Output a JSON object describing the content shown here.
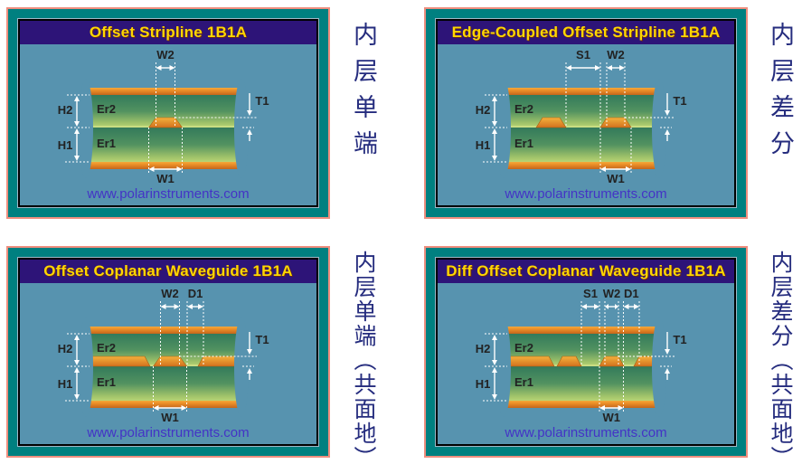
{
  "panels": [
    {
      "title": "Offset Stripline 1B1A",
      "website": "www.polarinstruments.com",
      "side_note": "内层单端",
      "dims": {
        "w2": "W2",
        "t1": "T1",
        "h2": "H2",
        "h1": "H1",
        "er2": "Er2",
        "er1": "Er1",
        "w1": "W1"
      }
    },
    {
      "title": "Edge-Coupled Offset Stripline 1B1A",
      "website": "www.polarinstruments.com",
      "side_note": "内层差分",
      "dims": {
        "s1": "S1",
        "w2": "W2",
        "t1": "T1",
        "h2": "H2",
        "h1": "H1",
        "er2": "Er2",
        "er1": "Er1",
        "w1": "W1"
      }
    },
    {
      "title": "Offset Coplanar Waveguide 1B1A",
      "website": "www.polarinstruments.com",
      "side_note": "内层单端（共面地）",
      "dims": {
        "w2": "W2",
        "d1": "D1",
        "t1": "T1",
        "h2": "H2",
        "h1": "H1",
        "er2": "Er2",
        "er1": "Er1",
        "w1": "W1"
      }
    },
    {
      "title": "Diff Offset Coplanar Waveguide 1B1A",
      "website": "www.polarinstruments.com",
      "side_note": "内层差分（共面地）",
      "dims": {
        "s1": "S1",
        "w2": "W2",
        "d1": "D1",
        "t1": "T1",
        "h2": "H2",
        "h1": "H1",
        "er2": "Er2",
        "er1": "Er1",
        "w1": "W1"
      }
    }
  ],
  "colors": {
    "border_salmon": "#EF8E7E",
    "border_teal": "#008080",
    "inner_light_line": "#9FB8C8",
    "title_bg": "#2D1478",
    "title_text": "#FFD700",
    "body_bg": "#5793AF",
    "website_text": "#4433C6",
    "side_note_text": "#252C7E",
    "copper_light": "#F2A93B",
    "copper_mid": "#EC8F28",
    "copper_dark": "#C4661B",
    "dielectric_top": "#337A5B",
    "dielectric_bottom": "#B8D474",
    "boundary_line": "#C9DD82",
    "annotation_white": "#FFFFFF",
    "dim_label_text": "#222222"
  }
}
